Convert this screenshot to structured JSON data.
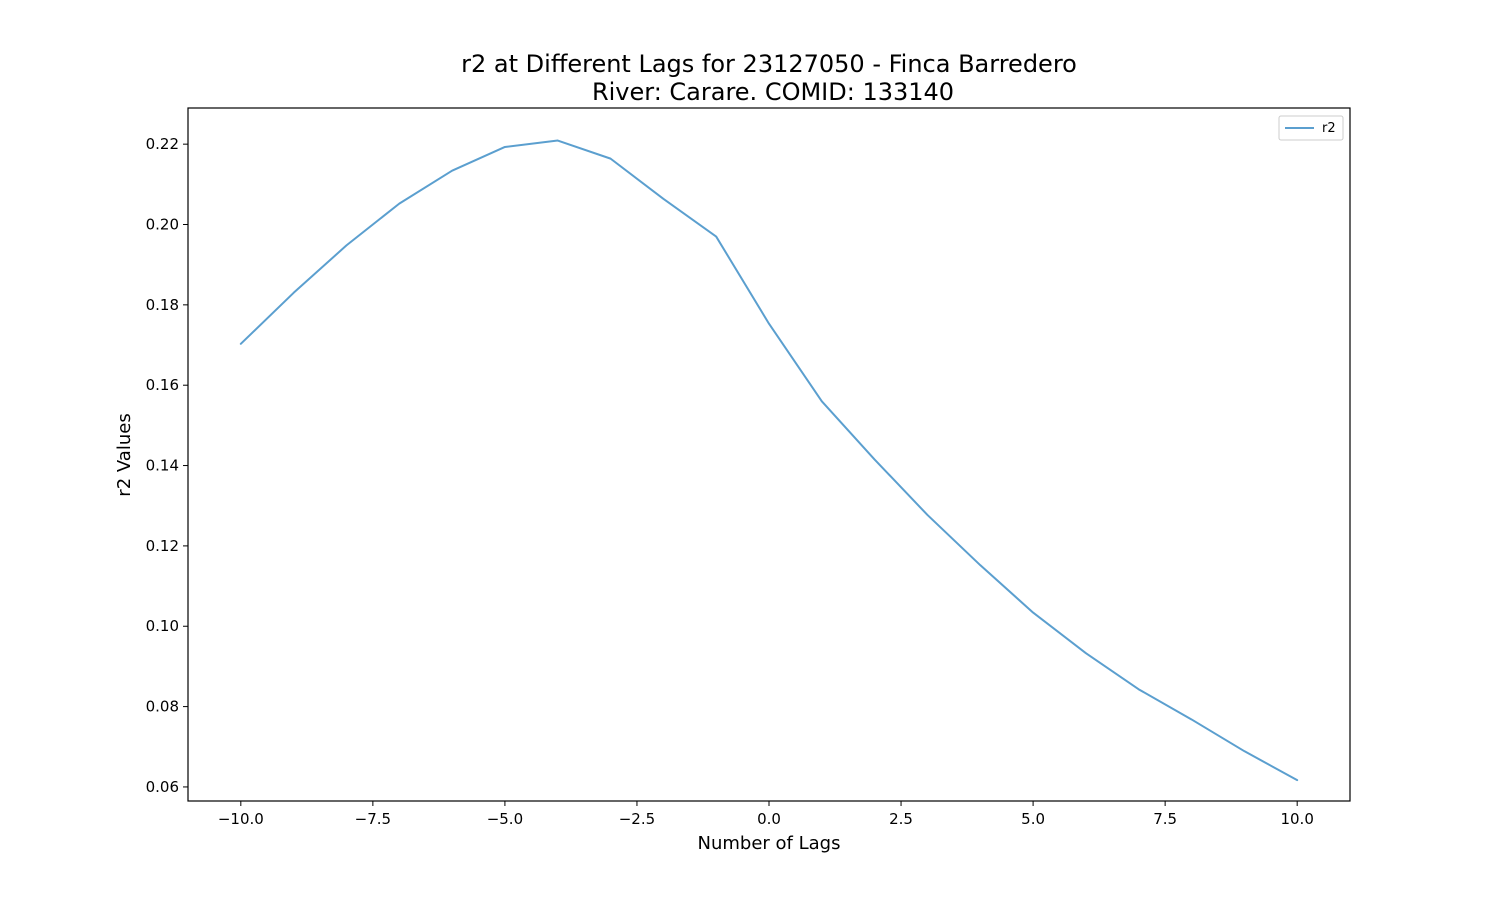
{
  "chart_data": {
    "type": "line",
    "title_line1": "r2 at Different Lags for 23127050 - Finca Barredero",
    "title_line2": "River: Carare. COMID: 133140",
    "xlabel": "Number of Lags",
    "ylabel": "r2 Values",
    "xlim": [
      -11.0,
      11.0
    ],
    "ylim": [
      0.0565,
      0.229
    ],
    "xticks": [
      -10.0,
      -7.5,
      -5.0,
      -2.5,
      0.0,
      2.5,
      5.0,
      7.5,
      10.0
    ],
    "xtick_labels": [
      "−10.0",
      "−7.5",
      "−5.0",
      "−2.5",
      "0.0",
      "2.5",
      "5.0",
      "7.5",
      "10.0"
    ],
    "yticks": [
      0.06,
      0.08,
      0.1,
      0.12,
      0.14,
      0.16,
      0.18,
      0.2,
      0.22
    ],
    "ytick_labels": [
      "0.06",
      "0.08",
      "0.10",
      "0.12",
      "0.14",
      "0.16",
      "0.18",
      "0.20",
      "0.22"
    ],
    "grid": false,
    "legend_position": "top-right",
    "series": [
      {
        "name": "r2",
        "color": "#5b9fcf",
        "x": [
          -10,
          -9,
          -8,
          -7,
          -6,
          -5,
          -4,
          -3,
          -2,
          -1,
          0,
          1,
          2,
          3,
          4,
          5,
          6,
          7,
          8,
          9,
          10
        ],
        "y": [
          0.1703,
          0.183,
          0.1948,
          0.2052,
          0.2134,
          0.2193,
          0.2209,
          0.2164,
          0.2064,
          0.197,
          0.1753,
          0.156,
          0.1415,
          0.1277,
          0.1152,
          0.1034,
          0.0933,
          0.0843,
          0.0768,
          0.0689,
          0.0617
        ]
      }
    ]
  }
}
